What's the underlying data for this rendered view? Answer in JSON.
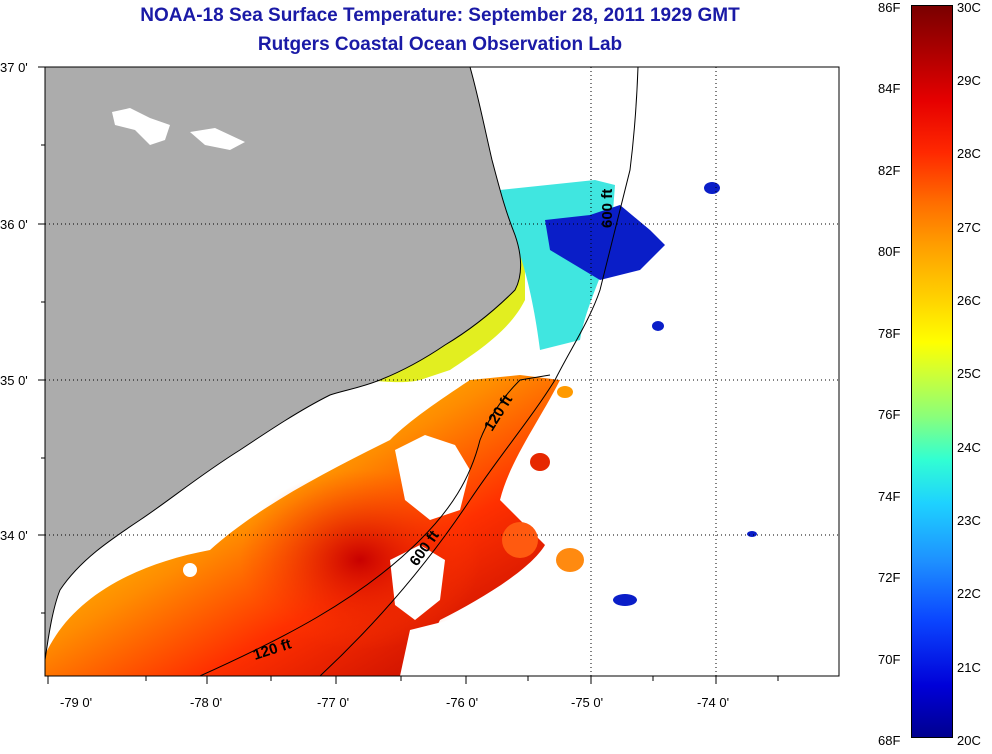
{
  "title": {
    "line1": "NOAA-18 Sea Surface Temperature:  September 28, 2011 1929 GMT",
    "line2": "Rutgers Coastal Ocean Observation Lab"
  },
  "map": {
    "lat_labels": [
      "37 0'",
      "36 0'",
      "35 0'",
      "34 0'"
    ],
    "lon_labels": [
      "-79 0'",
      "-78 0'",
      "-77 0'",
      "-76 0'",
      "-75 0'",
      "-74 0'"
    ],
    "contour_labels": [
      "600 ft",
      "120 ft",
      "600 ft",
      "120 ft"
    ],
    "colors": {
      "land": "#acacac",
      "background": "#ffffff",
      "grid": "#000000"
    }
  },
  "colorbar": {
    "fahrenheit": [
      "86F",
      "84F",
      "82F",
      "80F",
      "78F",
      "76F",
      "74F",
      "72F",
      "70F",
      "68F"
    ],
    "celsius": [
      "30C",
      "29C",
      "28C",
      "27C",
      "26C",
      "25C",
      "24C",
      "23C",
      "22C",
      "21C",
      "20C"
    ]
  }
}
